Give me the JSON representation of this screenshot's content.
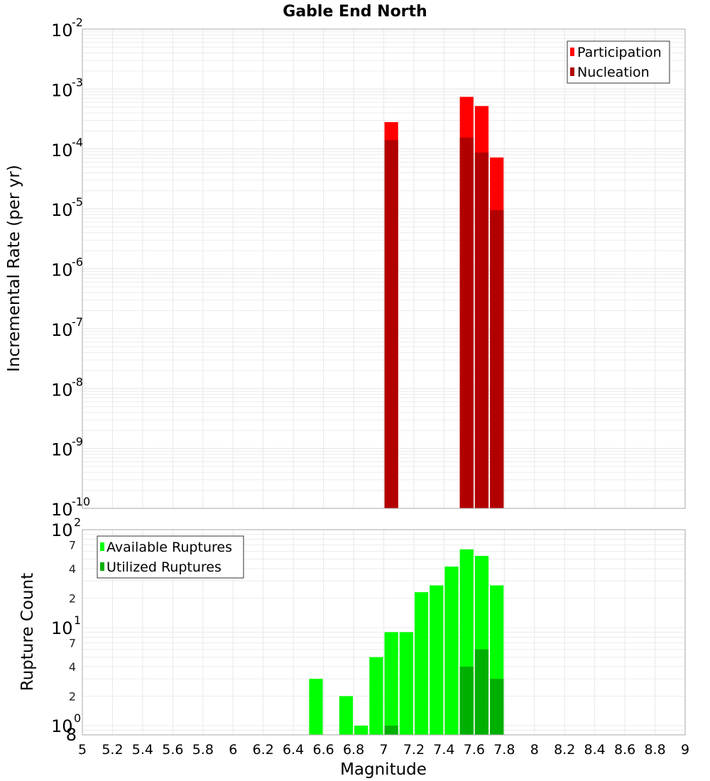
{
  "chart_data": [
    {
      "type": "bar",
      "title": "Gable End North",
      "xlabel": "Magnitude",
      "ylabel": "Incremental Rate (per yr)",
      "yscale": "log",
      "ylim": [
        1e-10,
        0.01
      ],
      "xlim": [
        5,
        9
      ],
      "grid": true,
      "legend_position": "top-right",
      "x_ticks": [
        "5",
        "5.2",
        "5.4",
        "5.6",
        "5.8",
        "6",
        "6.2",
        "6.4",
        "6.6",
        "6.8",
        "7",
        "7.2",
        "7.4",
        "7.6",
        "7.8",
        "8",
        "8.2",
        "8.4",
        "8.6",
        "8.8",
        "9"
      ],
      "y_ticks": [
        "10^-2",
        "10^-3",
        "10^-4",
        "10^-5",
        "10^-6",
        "10^-7",
        "10^-8",
        "10^-9",
        "10^-10"
      ],
      "x": [
        7.05,
        7.55,
        7.65,
        7.75
      ],
      "series": [
        {
          "name": "Participation",
          "color": "#ff0000",
          "values": [
            0.00028,
            0.00074,
            0.00052,
            7.2e-05
          ]
        },
        {
          "name": "Nucleation",
          "color": "#b20000",
          "values": [
            0.00014,
            0.000155,
            8.7e-05,
            9.5e-06
          ]
        }
      ]
    },
    {
      "type": "bar",
      "title": "",
      "xlabel": "Magnitude",
      "ylabel": "Rupture Count",
      "yscale": "log",
      "ylim": [
        0.8,
        100
      ],
      "xlim": [
        5,
        9
      ],
      "grid": true,
      "legend_position": "top-left",
      "x_ticks": [
        "5",
        "5.2",
        "5.4",
        "5.6",
        "5.8",
        "6",
        "6.2",
        "6.4",
        "6.6",
        "6.8",
        "7",
        "7.2",
        "7.4",
        "7.6",
        "7.8",
        "8",
        "8.2",
        "8.4",
        "8.6",
        "8.8",
        "9"
      ],
      "y_ticks": [
        "10^2",
        "7",
        "4",
        "2",
        "10^1",
        "7",
        "4",
        "2",
        "10^0",
        "8"
      ],
      "x": [
        6.55,
        6.75,
        6.85,
        6.95,
        7.05,
        7.15,
        7.25,
        7.35,
        7.45,
        7.55,
        7.65,
        7.75
      ],
      "series": [
        {
          "name": "Available Ruptures",
          "color": "#00ff00",
          "values": [
            3,
            2,
            1,
            5,
            9,
            9,
            23,
            27,
            42,
            63,
            54,
            27
          ]
        },
        {
          "name": "Utilized Ruptures",
          "color": "#00b000",
          "values": [
            0,
            0,
            0,
            0,
            1,
            0,
            0,
            0,
            0,
            4,
            6,
            3
          ]
        }
      ]
    }
  ],
  "labels": {
    "title": "Gable End North",
    "top_ylabel": "Incremental Rate (per yr)",
    "bottom_ylabel": "Rupture Count",
    "xlabel": "Magnitude",
    "legend_top": [
      "Participation",
      "Nucleation"
    ],
    "legend_bottom": [
      "Available Ruptures",
      "Utilized Ruptures"
    ]
  }
}
